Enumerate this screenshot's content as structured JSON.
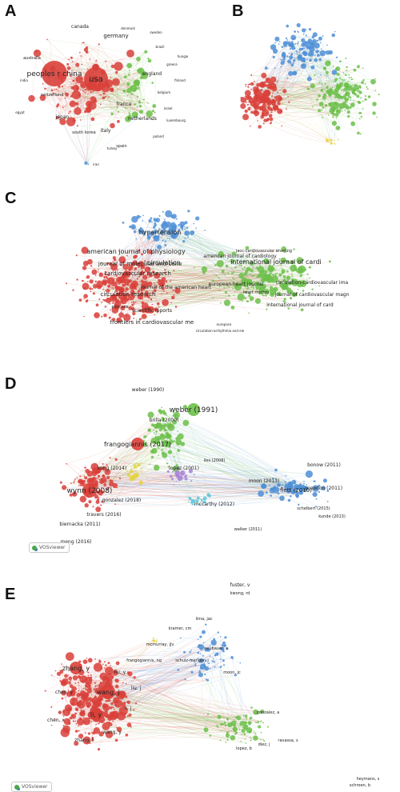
{
  "colors": {
    "red": "#d9403a",
    "green": "#6cc04a",
    "blue": "#4f8fd6",
    "yellow": "#e3d23a",
    "purple": "#a97fd6",
    "cyan": "#5cc6d8"
  },
  "panels": [
    {
      "key": "A",
      "letter": "A",
      "labels": [
        {
          "t": "peoples r china",
          "c": "red",
          "big": true
        },
        {
          "t": "usa",
          "c": "red",
          "big": true
        },
        {
          "t": "germany",
          "c": "red"
        },
        {
          "t": "japan",
          "c": "red"
        },
        {
          "t": "canada",
          "c": "red"
        },
        {
          "t": "england",
          "c": "red"
        },
        {
          "t": "italy",
          "c": "red"
        },
        {
          "t": "france",
          "c": "red"
        },
        {
          "t": "netherlands",
          "c": "red"
        },
        {
          "t": "spain",
          "c": "red"
        },
        {
          "t": "south korea",
          "c": "red"
        },
        {
          "t": "australia",
          "c": "red"
        },
        {
          "t": "switzerland",
          "c": "red"
        },
        {
          "t": "brazil",
          "c": "green"
        },
        {
          "t": "poland",
          "c": "green"
        },
        {
          "t": "belgium",
          "c": "green"
        },
        {
          "t": "israel",
          "c": "green"
        },
        {
          "t": "sweden",
          "c": "green"
        },
        {
          "t": "turkey",
          "c": "green"
        },
        {
          "t": "denmark",
          "c": "green"
        },
        {
          "t": "greece",
          "c": "green"
        },
        {
          "t": "iran",
          "c": "green"
        },
        {
          "t": "india",
          "c": "red"
        },
        {
          "t": "egypt",
          "c": "red"
        },
        {
          "t": "finland",
          "c": "green"
        },
        {
          "t": "luxembourg",
          "c": "green"
        },
        {
          "t": "hungary",
          "c": "green"
        }
      ]
    },
    {
      "key": "B",
      "letter": "B",
      "labels": []
    },
    {
      "key": "C",
      "letter": "C",
      "labels": [
        {
          "t": "circulation",
          "c": "blue"
        },
        {
          "t": "hypertension",
          "c": "blue"
        },
        {
          "t": "american journal of physiology",
          "c": "red"
        },
        {
          "t": "journal of molecular and cellu",
          "c": "red"
        },
        {
          "t": "cardiovascular research",
          "c": "red"
        },
        {
          "t": "circulation research",
          "c": "red"
        },
        {
          "t": "international journal of cardi",
          "c": "green"
        },
        {
          "t": "american journal of cardiology",
          "c": "green"
        },
        {
          "t": "european heart journal",
          "c": "green"
        },
        {
          "t": "journal of the american heart",
          "c": "red"
        },
        {
          "t": "scientific reports",
          "c": "red"
        },
        {
          "t": "frontiers in cardiovascular me",
          "c": "red"
        },
        {
          "t": "circulation-cardiovascular ima",
          "c": "green"
        },
        {
          "t": "journal of cardiovascular magn",
          "c": "green"
        },
        {
          "t": "international journal of card",
          "c": "green"
        },
        {
          "t": "plos one",
          "c": "red"
        },
        {
          "t": "circulation-arrhythmia and ele",
          "c": "green"
        },
        {
          "t": "jacc-cardiovascular imaging",
          "c": "green"
        },
        {
          "t": "heart rhythm",
          "c": "green"
        },
        {
          "t": "europace",
          "c": "green"
        }
      ]
    },
    {
      "key": "D",
      "letter": "D",
      "badge": "VOSviewer",
      "labels": [
        {
          "t": "weber (1991)",
          "c": "green",
          "big": true
        },
        {
          "t": "frangogiannis (2017)",
          "c": "red",
          "big": true
        },
        {
          "t": "wynn (2008)",
          "c": "red",
          "big": true
        },
        {
          "t": "flett (2010)",
          "c": "blue"
        },
        {
          "t": "mewton (2011)",
          "c": "blue"
        },
        {
          "t": "bonow (2011)",
          "c": "blue"
        },
        {
          "t": "moon (2013)",
          "c": "blue"
        },
        {
          "t": "weber (1990)",
          "c": "green"
        },
        {
          "t": "brilla (2000)",
          "c": "green"
        },
        {
          "t": "gonzalez (2018)",
          "c": "yellow"
        },
        {
          "t": "kong (2014)",
          "c": "red"
        },
        {
          "t": "travers (2016)",
          "c": "red"
        },
        {
          "t": "biernacka (2011)",
          "c": "red"
        },
        {
          "t": "meng (2016)",
          "c": "red"
        },
        {
          "t": "mccarthy (2012)",
          "c": "cyan"
        },
        {
          "t": "walker (2011)",
          "c": "blue"
        },
        {
          "t": "iles (2008)",
          "c": "blue"
        },
        {
          "t": "lopez (2001)",
          "c": "purple"
        },
        {
          "t": "kunde (2013)",
          "c": "blue"
        },
        {
          "t": "schelbert (2015)",
          "c": "blue"
        }
      ]
    },
    {
      "key": "E",
      "letter": "E",
      "badge": "VOSviewer",
      "labels": [
        {
          "t": "wang, j",
          "c": "red",
          "big": true
        },
        {
          "t": "li, y",
          "c": "red",
          "big": true
        },
        {
          "t": "zhang, y",
          "c": "red",
          "big": true
        },
        {
          "t": "liu, y",
          "c": "red"
        },
        {
          "t": "chen, y",
          "c": "red"
        },
        {
          "t": "wang, y",
          "c": "red"
        },
        {
          "t": "li, j",
          "c": "red"
        },
        {
          "t": "zhang, l",
          "c": "red"
        },
        {
          "t": "chen, x",
          "c": "red"
        },
        {
          "t": "liu, j",
          "c": "red"
        },
        {
          "t": "fuster, v",
          "c": "blue"
        },
        {
          "t": "kwong, rd",
          "c": "blue"
        },
        {
          "t": "lima, jac",
          "c": "blue"
        },
        {
          "t": "schulz-menger, j",
          "c": "blue"
        },
        {
          "t": "moon, jc",
          "c": "blue"
        },
        {
          "t": "kramer, cm",
          "c": "blue"
        },
        {
          "t": "gonzalez, a",
          "c": "green"
        },
        {
          "t": "diez, j",
          "c": "green"
        },
        {
          "t": "lopez, b",
          "c": "green"
        },
        {
          "t": "ravassa, s",
          "c": "green"
        },
        {
          "t": "mcmurray, jjv",
          "c": "yellow"
        },
        {
          "t": "neubauer, s",
          "c": "blue"
        },
        {
          "t": "frangogiannis, ng",
          "c": "red"
        },
        {
          "t": "heymans, s",
          "c": "green"
        },
        {
          "t": "schroen, b",
          "c": "green"
        }
      ]
    }
  ]
}
